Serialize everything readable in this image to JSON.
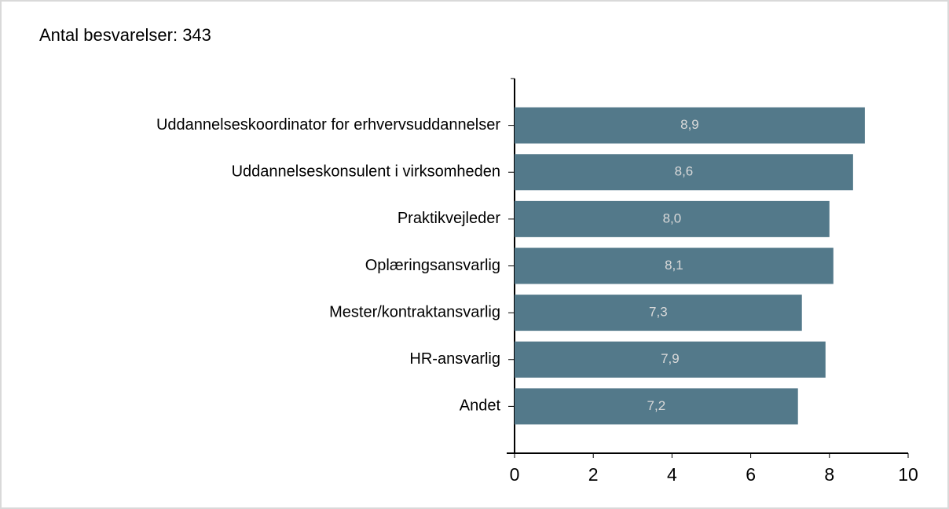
{
  "chart_data": {
    "type": "bar",
    "orientation": "horizontal",
    "title": "Antal besvarelser: 343",
    "categories": [
      "Uddannelseskoordinator for erhvervsuddannelser",
      "Uddannelseskonsulent i virksomheden",
      "Praktikvejleder",
      "Oplæringsansvarlig",
      "Mester/kontraktansvarlig",
      "HR-ansvarlig",
      "Andet"
    ],
    "values": [
      8.9,
      8.6,
      8.0,
      8.1,
      7.3,
      7.9,
      7.2
    ],
    "value_labels": [
      "8,9",
      "8,6",
      "8,0",
      "8,1",
      "7,3",
      "7,9",
      "7,2"
    ],
    "color": "#53798a",
    "xlim": [
      0,
      10
    ],
    "xticks": [
      0,
      2,
      4,
      6,
      8,
      10
    ],
    "grid": false
  }
}
